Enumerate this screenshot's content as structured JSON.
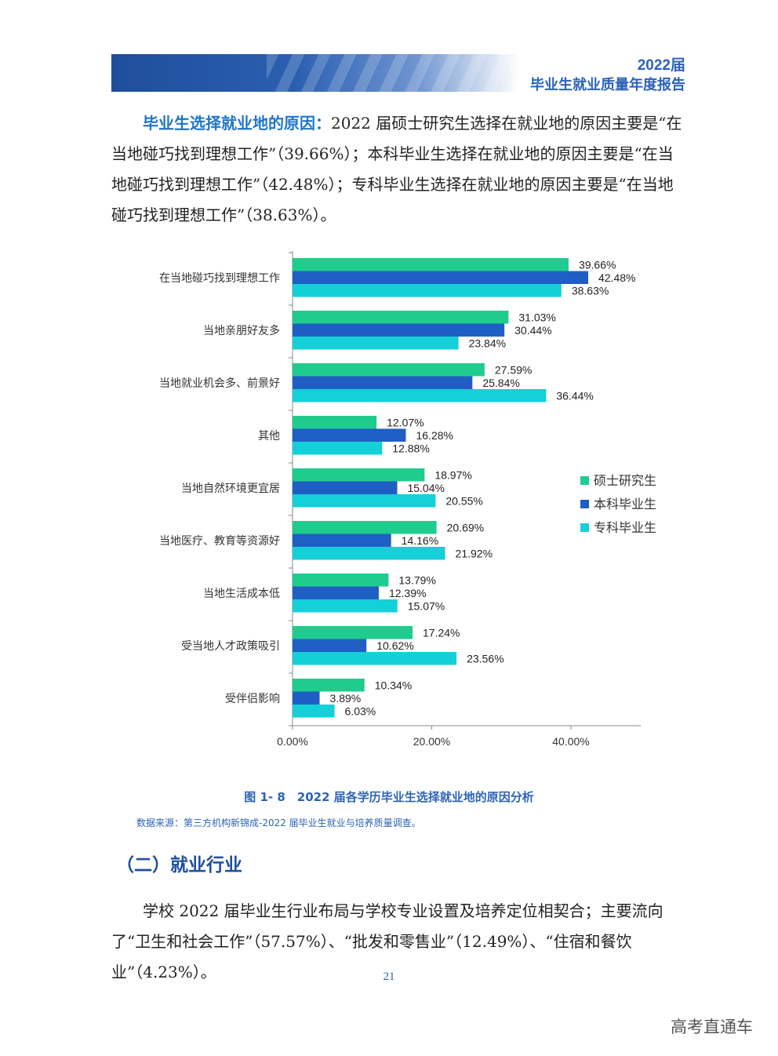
{
  "header": {
    "year": "2022届",
    "title": "毕业生就业质量年度报告"
  },
  "intro": {
    "lead": "毕业生选择就业地的原因：",
    "body": "2022 届硕士研究生选择在就业地的原因主要是“在当地碰巧找到理想工作”（39.66%）；本科毕业生选择在就业地的原因主要是“在当地碰巧找到理想工作”（42.48%）；专科毕业生选择在就业地的原因主要是“在当地碰巧找到理想工作”（38.63%）。"
  },
  "chart_data": {
    "type": "bar",
    "orientation": "horizontal",
    "categories": [
      "在当地碰巧找到理想工作",
      "当地亲朋好友多",
      "当地就业机会多、前景好",
      "其他",
      "当地自然环境更宜居",
      "当地医疗、教育等资源好",
      "当地生活成本低",
      "受当地人才政策吸引",
      "受伴侣影响"
    ],
    "series": [
      {
        "name": "硕士研究生",
        "color": "#1fcc8e",
        "values": [
          39.66,
          31.03,
          27.59,
          12.07,
          18.97,
          20.69,
          13.79,
          17.24,
          10.34
        ],
        "labels": [
          "39.66%",
          "31.03%",
          "27.59%",
          "12.07%",
          "18.97%",
          "20.69%",
          "13.79%",
          "17.24%",
          "10.34%"
        ]
      },
      {
        "name": "本科毕业生",
        "color": "#1f5fc4",
        "values": [
          42.48,
          30.44,
          25.84,
          16.28,
          15.04,
          14.16,
          12.39,
          10.62,
          3.89
        ],
        "labels": [
          "42.48%",
          "30.44%",
          "25.84%",
          "16.28%",
          "15.04%",
          "14.16%",
          "12.39%",
          "10.62%",
          "3.89%"
        ]
      },
      {
        "name": "专科毕业生",
        "color": "#14d0d8",
        "values": [
          38.63,
          23.84,
          36.44,
          12.88,
          20.55,
          21.92,
          15.07,
          23.56,
          6.03
        ],
        "labels": [
          "38.63%",
          "23.84%",
          "36.44%",
          "12.88%",
          "20.55%",
          "21.92%",
          "15.07%",
          "23.56%",
          "6.03%"
        ]
      }
    ],
    "xticks": [
      0,
      20,
      40
    ],
    "xtick_labels": [
      "0.00%",
      "20.00%",
      "40.00%"
    ],
    "xlim": [
      0,
      50
    ],
    "legend_position": "right",
    "grid": false
  },
  "figure": {
    "caption": "图 1- 8　2022 届各学历毕业生选择就业地的原因分析",
    "source": "数据来源：第三方机构新锦成-2022 届毕业生就业与培养质量调查。"
  },
  "section": {
    "title": "（二）就业行业",
    "body": "学校 2022 届毕业生行业布局与学校专业设置及培养定位相契合；主要流向了“卫生和社会工作”（57.57%）、“批发和零售业”（12.49%）、“住宿和餐饮业”（4.23%）。"
  },
  "page_number": "21",
  "watermark": "高考直通车"
}
